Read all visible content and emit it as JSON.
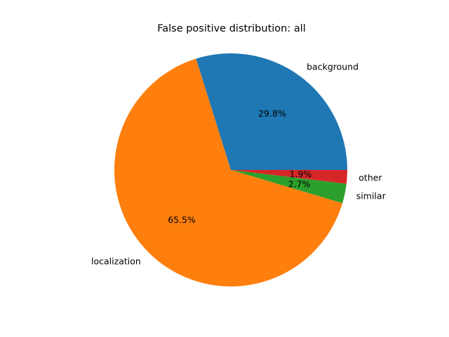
{
  "chart_data": {
    "type": "pie",
    "title": "False positive distribution: all",
    "start_angle": 0,
    "direction": "counterclockwise",
    "legend": "none",
    "slices": [
      {
        "label": "background",
        "value": 29.8,
        "pct_label": "29.8%",
        "color": "#1f77b4"
      },
      {
        "label": "localization",
        "value": 65.5,
        "pct_label": "65.5%",
        "color": "#ff7f0e"
      },
      {
        "label": "similar",
        "value": 2.7,
        "pct_label": "2.7%",
        "color": "#2ca02c"
      },
      {
        "label": "other",
        "value": 1.9,
        "pct_label": "1.9%",
        "color": "#d62728"
      }
    ]
  }
}
